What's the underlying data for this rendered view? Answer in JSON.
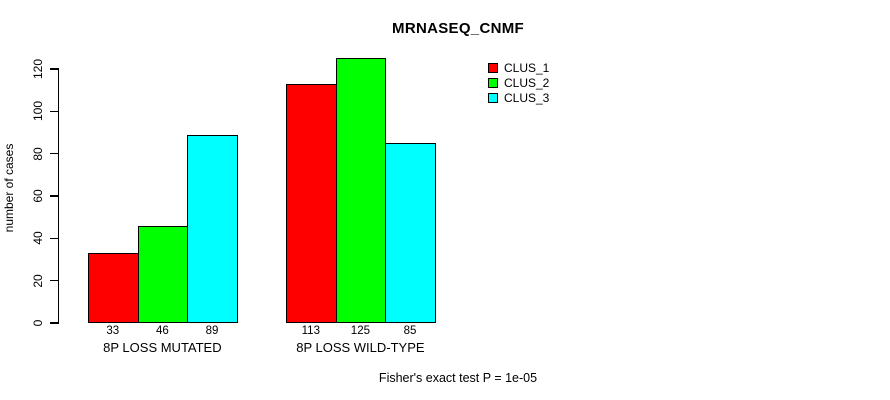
{
  "chart_data": {
    "type": "bar",
    "title": "MRNASEQ_CNMF",
    "ylabel": "number of cases",
    "xlabel": "",
    "ylim": [
      0,
      120
    ],
    "yticks": [
      0,
      20,
      40,
      60,
      80,
      100,
      120
    ],
    "grid": false,
    "categories": [
      "8P LOSS MUTATED",
      "8P LOSS WILD-TYPE"
    ],
    "series": [
      {
        "name": "CLUS_1",
        "color": "#ff0000",
        "values": [
          33,
          113
        ]
      },
      {
        "name": "CLUS_2",
        "color": "#00ff00",
        "values": [
          46,
          125
        ]
      },
      {
        "name": "CLUS_3",
        "color": "#00ffff",
        "values": [
          89,
          85
        ]
      }
    ],
    "bar_value_labels": [
      [
        33,
        46,
        89
      ],
      [
        113,
        125,
        85
      ]
    ],
    "legend": {
      "position": "top-right",
      "entries": [
        "CLUS_1",
        "CLUS_2",
        "CLUS_3"
      ]
    },
    "caption": "Fisher's exact test P = 1e-05"
  }
}
